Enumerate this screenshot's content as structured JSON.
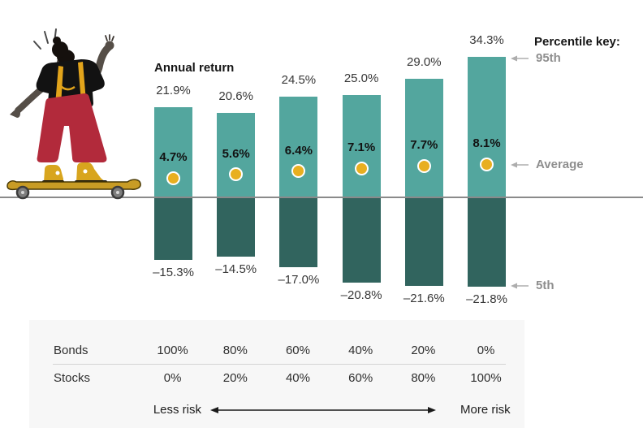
{
  "chart": {
    "annual_return_label": "Annual return"
  },
  "percentile_key": {
    "title": "Percentile key:",
    "p95": "95th",
    "average": "Average",
    "p5": "5th"
  },
  "chart_data": {
    "type": "bar",
    "title": "Annual return",
    "unit": "%",
    "baseline": 0,
    "categories": [
      "100% bonds / 0% stocks",
      "80% bonds / 20% stocks",
      "60% bonds / 40% stocks",
      "40% bonds / 60% stocks",
      "20% bonds / 80% stocks",
      "0% bonds / 100% stocks"
    ],
    "series": [
      {
        "name": "95th percentile",
        "values": [
          21.9,
          20.6,
          24.5,
          25.0,
          29.0,
          34.3
        ]
      },
      {
        "name": "Average",
        "values": [
          4.7,
          5.6,
          6.4,
          7.1,
          7.7,
          8.1
        ]
      },
      {
        "name": "5th percentile",
        "values": [
          -15.3,
          -14.5,
          -17.0,
          -20.8,
          -21.6,
          -21.8
        ]
      }
    ],
    "value_labels": {
      "p95": [
        "21.9%",
        "20.6%",
        "24.5%",
        "25.0%",
        "29.0%",
        "34.3%"
      ],
      "average": [
        "4.7%",
        "5.6%",
        "6.4%",
        "7.1%",
        "7.7%",
        "8.1%"
      ],
      "p5": [
        "–15.3%",
        "–14.5%",
        "–17.0%",
        "–20.8%",
        "–21.6%",
        "–21.8%"
      ]
    },
    "legend_position": "right",
    "grid": false,
    "colors": {
      "above_zero": "#53a69e",
      "below_zero": "#31645e",
      "average_dot": "#e8af20",
      "baseline_line": "#8a8a8a"
    }
  },
  "allocation_table": {
    "rows": [
      {
        "label": "Bonds",
        "values": [
          "100%",
          "80%",
          "60%",
          "40%",
          "20%",
          "0%"
        ]
      },
      {
        "label": "Stocks",
        "values": [
          "0%",
          "20%",
          "40%",
          "60%",
          "80%",
          "100%"
        ]
      }
    ],
    "less_risk": "Less risk",
    "more_risk": "More risk"
  },
  "illustration": {
    "description": "person waving while riding a longboard"
  }
}
